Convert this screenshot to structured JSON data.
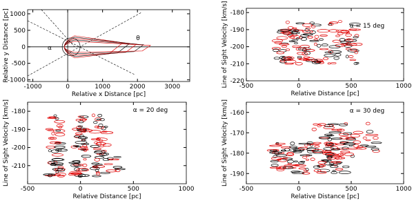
{
  "chart_data": [
    {
      "type": "contour",
      "xlabel": "Relative x Distance [pc]",
      "ylabel": "Relative y Distance [pc]",
      "xlim": [
        -1150,
        3500
      ],
      "ylim": [
        -1050,
        1125
      ],
      "xticks": [
        -1000,
        0,
        1000,
        2000,
        3000
      ],
      "yticks": [
        -1000,
        -500,
        0,
        500,
        1000
      ],
      "annotations": [
        "α",
        "θ"
      ]
    },
    {
      "type": "contour",
      "xlabel": "Relative Distance [pc]",
      "ylabel": "Line of Sight Velocity [km/s]",
      "xlim": [
        -500,
        1000
      ],
      "ylim": [
        -220,
        -177.5
      ],
      "xticks": [
        -500,
        0,
        500,
        1000
      ],
      "yticks": [
        -220,
        -210,
        -200,
        -190,
        -180
      ],
      "annotations": [
        "α = 15 deg"
      ]
    },
    {
      "type": "contour",
      "xlabel": "Relative Distance [pc]",
      "ylabel": "Line of Sight Velocity [km/s]",
      "xlim": [
        -500,
        1000
      ],
      "ylim": [
        -220,
        -175
      ],
      "xticks": [
        -500,
        0,
        500,
        1000
      ],
      "yticks": [
        -210,
        -200,
        -190,
        -180
      ],
      "annotations": [
        "α = 20 deg"
      ]
    },
    {
      "type": "contour",
      "xlabel": "Relative Distance [pc]",
      "ylabel": "Line of Sight Velocity [km/s]",
      "xlim": [
        -500,
        1000
      ],
      "ylim": [
        -195,
        -155
      ],
      "xticks": [
        -500,
        0,
        500,
        1000
      ],
      "yticks": [
        -190,
        -180,
        -170,
        -160
      ],
      "annotations": [
        "α = 30 deg"
      ]
    }
  ]
}
